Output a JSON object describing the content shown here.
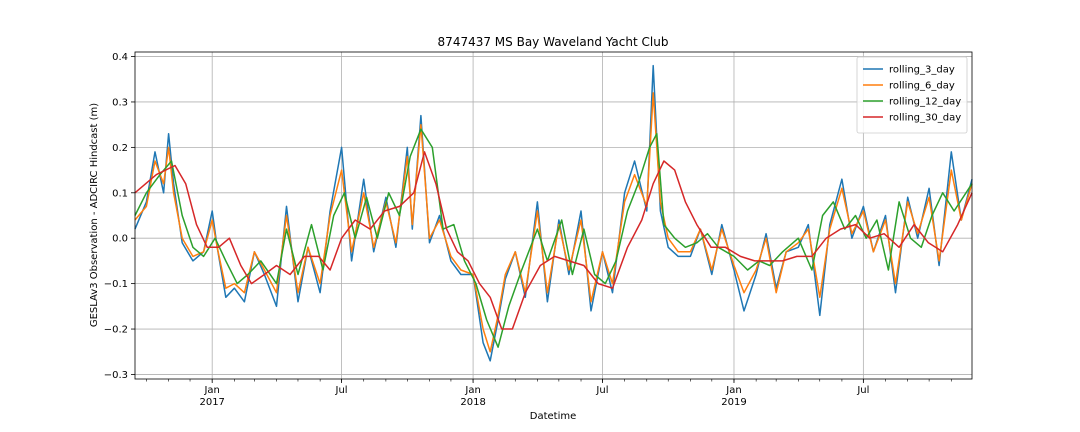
{
  "chart_data": {
    "type": "line",
    "title": "8747437 MS Bay Waveland Yacht Club",
    "xlabel": "Datetime",
    "ylabel": "GESLAv3 Observation - ADCIRC Hindcast (m)",
    "xlim": [
      "2016-09-15",
      "2019-11-30"
    ],
    "ylim": [
      -0.31,
      0.41
    ],
    "grid": true,
    "legend_position": "top-right",
    "y_ticks": [
      "−0.3",
      "−0.2",
      "−0.1",
      "0.0",
      "0.1",
      "0.2",
      "0.3",
      "0.4"
    ],
    "x_ticks": [
      {
        "date": "2017-01-01",
        "label": "Jan",
        "year": "2017"
      },
      {
        "date": "2017-07-01",
        "label": "Jul",
        "year": ""
      },
      {
        "date": "2018-01-01",
        "label": "Jan",
        "year": "2018"
      },
      {
        "date": "2018-07-01",
        "label": "Jul",
        "year": ""
      },
      {
        "date": "2019-01-01",
        "label": "Jan",
        "year": "2019"
      },
      {
        "date": "2019-07-01",
        "label": "Jul",
        "year": ""
      }
    ],
    "series": [
      {
        "name": "rolling_3_day",
        "color": "#1f77b4",
        "x": [
          "2016-09-15",
          "2016-10-01",
          "2016-10-13",
          "2016-10-25",
          "2016-11-01",
          "2016-11-08",
          "2016-11-20",
          "2016-12-05",
          "2016-12-20",
          "2017-01-01",
          "2017-01-08",
          "2017-01-20",
          "2017-02-01",
          "2017-02-15",
          "2017-03-01",
          "2017-03-15",
          "2017-04-01",
          "2017-04-15",
          "2017-05-01",
          "2017-05-15",
          "2017-06-01",
          "2017-06-15",
          "2017-07-01",
          "2017-07-15",
          "2017-08-01",
          "2017-08-15",
          "2017-09-01",
          "2017-09-15",
          "2017-10-01",
          "2017-10-08",
          "2017-10-20",
          "2017-11-01",
          "2017-11-15",
          "2017-12-01",
          "2017-12-15",
          "2018-01-01",
          "2018-01-15",
          "2018-01-25",
          "2018-02-05",
          "2018-02-15",
          "2018-03-01",
          "2018-03-15",
          "2018-04-01",
          "2018-04-15",
          "2018-05-01",
          "2018-05-15",
          "2018-06-01",
          "2018-06-15",
          "2018-07-01",
          "2018-07-15",
          "2018-08-01",
          "2018-08-15",
          "2018-09-01",
          "2018-09-10",
          "2018-09-20",
          "2018-10-01",
          "2018-10-15",
          "2018-11-01",
          "2018-11-15",
          "2018-12-01",
          "2018-12-15",
          "2019-01-01",
          "2019-01-15",
          "2019-02-01",
          "2019-02-15",
          "2019-03-01",
          "2019-03-15",
          "2019-04-01",
          "2019-04-15",
          "2019-05-01",
          "2019-05-15",
          "2019-06-01",
          "2019-06-15",
          "2019-07-01",
          "2019-07-15",
          "2019-08-01",
          "2019-08-15",
          "2019-09-01",
          "2019-09-15",
          "2019-10-01",
          "2019-10-15",
          "2019-11-01",
          "2019-11-15",
          "2019-11-30"
        ],
        "y": [
          0.02,
          0.08,
          0.19,
          0.1,
          0.23,
          0.12,
          -0.01,
          -0.05,
          -0.03,
          0.06,
          -0.02,
          -0.13,
          -0.11,
          -0.14,
          -0.03,
          -0.08,
          -0.15,
          0.07,
          -0.14,
          -0.02,
          -0.12,
          0.06,
          0.2,
          -0.05,
          0.13,
          -0.03,
          0.09,
          -0.02,
          0.2,
          0.02,
          0.27,
          -0.01,
          0.05,
          -0.05,
          -0.08,
          -0.08,
          -0.23,
          -0.27,
          -0.18,
          -0.09,
          -0.03,
          -0.13,
          0.08,
          -0.14,
          0.04,
          -0.08,
          0.06,
          -0.16,
          -0.03,
          -0.12,
          0.1,
          0.17,
          0.06,
          0.38,
          0.06,
          -0.02,
          -0.04,
          -0.04,
          0.02,
          -0.08,
          0.03,
          -0.07,
          -0.16,
          -0.08,
          0.01,
          -0.11,
          -0.03,
          -0.02,
          0.03,
          -0.17,
          0.03,
          0.13,
          0.0,
          0.07,
          -0.03,
          0.05,
          -0.12,
          0.09,
          0.0,
          0.11,
          -0.06,
          0.19,
          0.04,
          0.13
        ]
      },
      {
        "name": "rolling_6_day",
        "color": "#ff7f0e",
        "x": [
          "2016-09-15",
          "2016-10-01",
          "2016-10-13",
          "2016-10-25",
          "2016-11-01",
          "2016-11-08",
          "2016-11-20",
          "2016-12-05",
          "2016-12-20",
          "2017-01-01",
          "2017-01-08",
          "2017-01-20",
          "2017-02-01",
          "2017-02-15",
          "2017-03-01",
          "2017-03-15",
          "2017-04-01",
          "2017-04-15",
          "2017-05-01",
          "2017-05-15",
          "2017-06-01",
          "2017-06-15",
          "2017-07-01",
          "2017-07-15",
          "2017-08-01",
          "2017-08-15",
          "2017-09-01",
          "2017-09-15",
          "2017-10-01",
          "2017-10-08",
          "2017-10-20",
          "2017-11-01",
          "2017-11-15",
          "2017-12-01",
          "2017-12-15",
          "2018-01-01",
          "2018-01-15",
          "2018-01-25",
          "2018-02-05",
          "2018-02-15",
          "2018-03-01",
          "2018-03-15",
          "2018-04-01",
          "2018-04-15",
          "2018-05-01",
          "2018-05-15",
          "2018-06-01",
          "2018-06-15",
          "2018-07-01",
          "2018-07-15",
          "2018-08-01",
          "2018-08-15",
          "2018-09-01",
          "2018-09-10",
          "2018-09-20",
          "2018-10-01",
          "2018-10-15",
          "2018-11-01",
          "2018-11-15",
          "2018-12-01",
          "2018-12-15",
          "2019-01-01",
          "2019-01-15",
          "2019-02-01",
          "2019-02-15",
          "2019-03-01",
          "2019-03-15",
          "2019-04-01",
          "2019-04-15",
          "2019-05-01",
          "2019-05-15",
          "2019-06-01",
          "2019-06-15",
          "2019-07-01",
          "2019-07-15",
          "2019-08-01",
          "2019-08-15",
          "2019-09-01",
          "2019-09-15",
          "2019-10-01",
          "2019-10-15",
          "2019-11-01",
          "2019-11-15",
          "2019-11-30"
        ],
        "y": [
          0.04,
          0.07,
          0.17,
          0.12,
          0.2,
          0.1,
          0.0,
          -0.04,
          -0.03,
          0.04,
          -0.02,
          -0.11,
          -0.1,
          -0.12,
          -0.03,
          -0.07,
          -0.12,
          0.05,
          -0.12,
          -0.02,
          -0.1,
          0.05,
          0.15,
          -0.03,
          0.1,
          -0.02,
          0.08,
          -0.01,
          0.18,
          0.03,
          0.25,
          0.0,
          0.04,
          -0.04,
          -0.07,
          -0.08,
          -0.2,
          -0.25,
          -0.17,
          -0.08,
          -0.03,
          -0.12,
          0.06,
          -0.12,
          0.03,
          -0.07,
          0.04,
          -0.14,
          -0.03,
          -0.1,
          0.08,
          0.14,
          0.07,
          0.32,
          0.08,
          0.0,
          -0.03,
          -0.03,
          0.02,
          -0.07,
          0.02,
          -0.06,
          -0.12,
          -0.07,
          0.0,
          -0.12,
          -0.03,
          -0.01,
          0.02,
          -0.13,
          0.02,
          0.11,
          0.01,
          0.06,
          -0.03,
          0.04,
          -0.1,
          0.08,
          0.01,
          0.09,
          -0.05,
          0.15,
          0.04,
          0.12
        ]
      },
      {
        "name": "rolling_12_day",
        "color": "#2ca02c",
        "x": [
          "2016-09-15",
          "2016-10-01",
          "2016-10-20",
          "2016-11-05",
          "2016-11-20",
          "2016-12-05",
          "2016-12-20",
          "2017-01-05",
          "2017-01-20",
          "2017-02-05",
          "2017-02-20",
          "2017-03-10",
          "2017-04-01",
          "2017-04-15",
          "2017-05-01",
          "2017-05-20",
          "2017-06-05",
          "2017-06-20",
          "2017-07-05",
          "2017-07-20",
          "2017-08-05",
          "2017-08-20",
          "2017-09-05",
          "2017-09-20",
          "2017-10-05",
          "2017-10-20",
          "2017-11-05",
          "2017-11-20",
          "2017-12-05",
          "2017-12-20",
          "2018-01-05",
          "2018-01-20",
          "2018-02-05",
          "2018-02-20",
          "2018-03-10",
          "2018-04-01",
          "2018-04-15",
          "2018-05-05",
          "2018-05-20",
          "2018-06-05",
          "2018-06-20",
          "2018-07-05",
          "2018-07-20",
          "2018-08-05",
          "2018-08-20",
          "2018-09-05",
          "2018-09-15",
          "2018-09-25",
          "2018-10-10",
          "2018-10-25",
          "2018-11-10",
          "2018-11-25",
          "2018-12-10",
          "2019-01-01",
          "2019-01-20",
          "2019-02-05",
          "2019-02-20",
          "2019-03-10",
          "2019-04-01",
          "2019-04-20",
          "2019-05-05",
          "2019-05-20",
          "2019-06-05",
          "2019-06-20",
          "2019-07-05",
          "2019-07-20",
          "2019-08-05",
          "2019-08-20",
          "2019-09-05",
          "2019-09-20",
          "2019-10-05",
          "2019-10-20",
          "2019-11-05",
          "2019-11-30"
        ],
        "y": [
          0.05,
          0.1,
          0.14,
          0.17,
          0.05,
          -0.02,
          -0.04,
          0.0,
          -0.05,
          -0.1,
          -0.08,
          -0.05,
          -0.1,
          0.02,
          -0.08,
          0.03,
          -0.07,
          0.05,
          0.1,
          0.0,
          0.09,
          0.0,
          0.1,
          0.05,
          0.18,
          0.24,
          0.2,
          0.02,
          0.03,
          -0.05,
          -0.1,
          -0.18,
          -0.24,
          -0.15,
          -0.07,
          0.02,
          -0.05,
          0.04,
          -0.08,
          0.02,
          -0.08,
          -0.1,
          -0.05,
          0.06,
          0.12,
          0.2,
          0.23,
          0.03,
          0.0,
          -0.02,
          -0.01,
          0.01,
          -0.02,
          -0.04,
          -0.07,
          -0.05,
          -0.06,
          -0.03,
          0.0,
          -0.07,
          0.05,
          0.08,
          0.02,
          0.05,
          0.0,
          0.04,
          -0.07,
          0.08,
          0.0,
          -0.02,
          0.05,
          0.1,
          0.06,
          0.12
        ]
      },
      {
        "name": "rolling_30_day",
        "color": "#d62728",
        "x": [
          "2016-09-15",
          "2016-10-15",
          "2016-11-10",
          "2016-11-25",
          "2016-12-10",
          "2016-12-25",
          "2017-01-10",
          "2017-01-25",
          "2017-02-10",
          "2017-02-25",
          "2017-03-15",
          "2017-04-01",
          "2017-04-20",
          "2017-05-10",
          "2017-05-30",
          "2017-06-15",
          "2017-07-01",
          "2017-07-20",
          "2017-08-10",
          "2017-08-30",
          "2017-09-20",
          "2017-10-10",
          "2017-10-25",
          "2017-11-10",
          "2017-11-25",
          "2017-12-10",
          "2017-12-25",
          "2018-01-10",
          "2018-01-25",
          "2018-02-10",
          "2018-02-25",
          "2018-03-15",
          "2018-04-05",
          "2018-04-25",
          "2018-05-15",
          "2018-06-05",
          "2018-06-25",
          "2018-07-15",
          "2018-08-05",
          "2018-08-25",
          "2018-09-10",
          "2018-09-25",
          "2018-10-10",
          "2018-10-25",
          "2018-11-10",
          "2018-11-30",
          "2018-12-20",
          "2019-01-10",
          "2019-01-30",
          "2019-02-20",
          "2019-03-10",
          "2019-03-30",
          "2019-04-20",
          "2019-05-10",
          "2019-05-30",
          "2019-06-20",
          "2019-07-10",
          "2019-07-30",
          "2019-08-20",
          "2019-09-10",
          "2019-09-30",
          "2019-10-20",
          "2019-11-10",
          "2019-11-30"
        ],
        "y": [
          0.1,
          0.14,
          0.16,
          0.12,
          0.03,
          -0.02,
          -0.02,
          0.0,
          -0.06,
          -0.1,
          -0.08,
          -0.06,
          -0.08,
          -0.04,
          -0.04,
          -0.07,
          0.0,
          0.04,
          0.02,
          0.06,
          0.07,
          0.1,
          0.19,
          0.12,
          0.02,
          -0.03,
          -0.05,
          -0.1,
          -0.13,
          -0.2,
          -0.2,
          -0.12,
          -0.06,
          -0.04,
          -0.05,
          -0.06,
          -0.1,
          -0.11,
          -0.02,
          0.04,
          0.12,
          0.17,
          0.15,
          0.08,
          0.03,
          -0.02,
          -0.02,
          -0.04,
          -0.05,
          -0.05,
          -0.05,
          -0.04,
          -0.04,
          0.0,
          0.02,
          0.03,
          0.0,
          0.01,
          -0.02,
          0.03,
          -0.01,
          -0.03,
          0.03,
          0.1
        ]
      }
    ]
  }
}
